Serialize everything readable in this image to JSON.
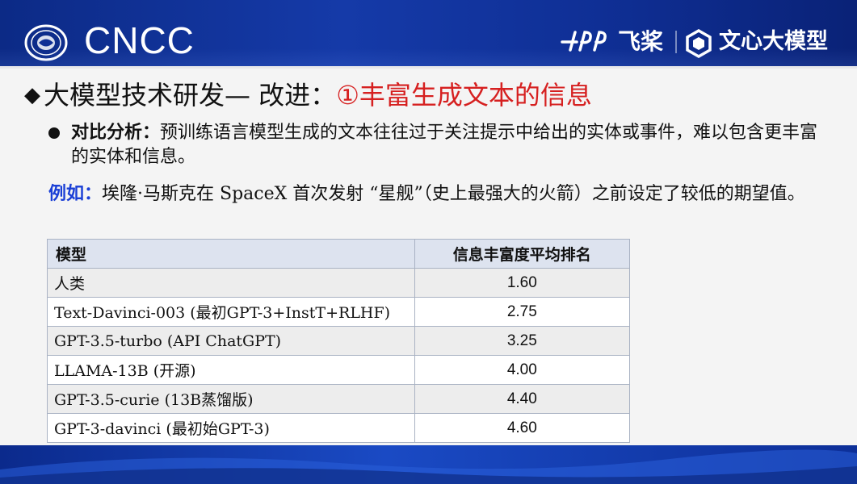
{
  "header": {
    "conference": "CNCC",
    "paddle_name": "飞桨",
    "wenxin_name": "文心大模型",
    "brand_color": "#0f2f95"
  },
  "title": {
    "bullet": "◆",
    "main": "大模型技术研发— 改进：",
    "highlight": "①丰富生成文本的信息",
    "highlight_color": "#d62020"
  },
  "point": {
    "lead": "对比分析：",
    "text": "预训练语言模型生成的文本往往过于关注提示中给出的实体或事件，难以包含更丰富的实体和信息。"
  },
  "example": {
    "lead": "例如：",
    "text": "埃隆·马斯克在 SpaceX 首次发射 “星舰”（史上最强大的火箭）之前设定了较低的期望值。",
    "lead_color": "#1a3fd6"
  },
  "table": {
    "headers": [
      "模型",
      "信息丰富度平均排名"
    ],
    "rows": [
      {
        "model": "人类",
        "rank": "1.60"
      },
      {
        "model": "Text-Davinci-003 (最初GPT-3+InstT+RLHF)",
        "rank": "2.75"
      },
      {
        "model": "GPT-3.5-turbo (API ChatGPT)",
        "rank": "3.25"
      },
      {
        "model": "LLAMA-13B (开源)",
        "rank": "4.00"
      },
      {
        "model": "GPT-3.5-curie (13B蒸馏版)",
        "rank": "4.40"
      },
      {
        "model": "GPT-3-davinci (最初始GPT-3)",
        "rank": "4.60"
      }
    ]
  }
}
